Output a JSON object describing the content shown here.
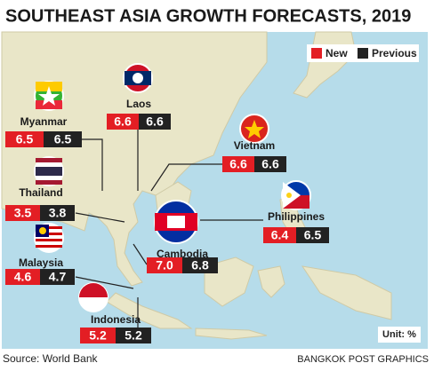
{
  "title": "SOUTHEAST ASIA GROWTH FORECASTS, 2019",
  "legend": {
    "new": "New",
    "previous": "Previous"
  },
  "countries": [
    {
      "name": "Laos",
      "new": 6.6,
      "previous": 6.6
    },
    {
      "name": "Myanmar",
      "new": 6.5,
      "previous": 6.5
    },
    {
      "name": "Vietnam",
      "new": 6.6,
      "previous": 6.6
    },
    {
      "name": "Thailand",
      "new": 3.5,
      "previous": 3.8
    },
    {
      "name": "Philippines",
      "new": 6.4,
      "previous": 6.5
    },
    {
      "name": "Malaysia",
      "new": 4.6,
      "previous": 4.7
    },
    {
      "name": "Cambodia",
      "new": {
        "value": 7.0,
        "label": "7.0"
      },
      "previous": 6.8
    },
    {
      "name": "Indonesia",
      "new": 5.2,
      "previous": 5.2
    }
  ],
  "unit": "Unit: %",
  "source": "Source: World Bank",
  "credit": "BANGKOK POST GRAPHICS"
}
